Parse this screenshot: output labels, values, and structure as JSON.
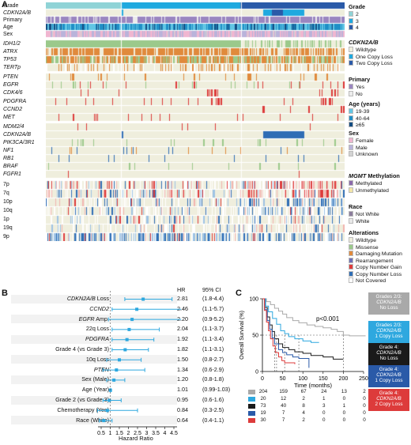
{
  "panels": {
    "a": "A",
    "b": "B",
    "c": "C"
  },
  "oncoprint": {
    "rows": [
      {
        "label": "Grade",
        "italic": false
      },
      {
        "label": "CDKN2A/B",
        "italic": true
      },
      {
        "label": "Primary",
        "italic": false
      },
      {
        "label": "Age",
        "italic": false
      },
      {
        "label": "Sex",
        "italic": false
      },
      {
        "label": "IDH1/2",
        "italic": true
      },
      {
        "label": "ATRX",
        "italic": true
      },
      {
        "label": "TP53",
        "italic": true
      },
      {
        "label": "TERTp",
        "italic": true
      },
      {
        "label": "PTEN",
        "italic": true
      },
      {
        "label": "EGFR",
        "italic": true
      },
      {
        "label": "CDK4/6",
        "italic": true
      },
      {
        "label": "PDGFRA",
        "italic": true
      },
      {
        "label": "CCND2",
        "italic": true
      },
      {
        "label": "MET",
        "italic": true
      },
      {
        "label": "MDM2/4",
        "italic": true
      },
      {
        "label": "CDKN2A/B",
        "italic": true
      },
      {
        "label": "PIK3CA/3R1",
        "italic": true
      },
      {
        "label": "NF1",
        "italic": true
      },
      {
        "label": "RB1",
        "italic": true
      },
      {
        "label": "BRAF",
        "italic": true
      },
      {
        "label": "FGFR1",
        "italic": true
      },
      {
        "label": "7p",
        "italic": false
      },
      {
        "label": "7q",
        "italic": false
      },
      {
        "label": "10p",
        "italic": false
      },
      {
        "label": "10q",
        "italic": false
      },
      {
        "label": "1p",
        "italic": false
      },
      {
        "label": "19q",
        "italic": false
      },
      {
        "label": "9p",
        "italic": false
      }
    ],
    "colors": {
      "grade2": "#8fd3d6",
      "grade3": "#1fa9df",
      "grade4": "#2a5aa8",
      "wildtype": "#efeedd",
      "missense": "#9bc98b",
      "damaging": "#e08a3c",
      "rearrangement": "#6c6fb8",
      "gain": "#dd3b3b",
      "loss": "#2f6db5",
      "not_covered": "#ffffff",
      "primary_yes": "#9a86c0",
      "primary_no": "#ececec",
      "age1": "#62c6e4",
      "age2": "#1f8fc6",
      "age3": "#134c82",
      "female": "#f0b6d0",
      "male": "#b9b3da",
      "unknown": "#d3d3d3",
      "methylated": "#8b6aab",
      "unmethylated": "#f3e6a8",
      "not_white": "#8c7e9c",
      "white": "#e8e8e8"
    }
  },
  "legend": {
    "grade": {
      "title": "Grade",
      "items": [
        "2",
        "3",
        "4"
      ]
    },
    "cdkn2ab": {
      "title": "CDKN2A/B",
      "items": [
        "Wildtype",
        "One Copy Loss",
        "Two Copy Loss"
      ]
    },
    "primary": {
      "title": "Primary",
      "items": [
        "Yes",
        "No"
      ]
    },
    "age": {
      "title": "Age (years)",
      "items": [
        "19-39",
        "40-64",
        "≥65"
      ]
    },
    "sex": {
      "title": "Sex",
      "items": [
        "Female",
        "Male",
        "Unknown"
      ]
    },
    "mgmt": {
      "title_it": "MGMT",
      "title_rest": " Methylation",
      "items": [
        "Methylated",
        "Unmethylated"
      ]
    },
    "race": {
      "title": "Race",
      "items": [
        "Not White",
        "White"
      ]
    },
    "alterations": {
      "title": "Alterations",
      "items": [
        "Wildtype",
        "Missense",
        "Damaging Mutation",
        "Rearrangement",
        "Copy Number Gain",
        "Copy Number Loss",
        "Not Covered"
      ]
    }
  },
  "forest": {
    "hr_header": "HR",
    "ci_header": "95% CI",
    "xlabel": "Hazard Ratio",
    "ticks": [
      "0.5",
      "1",
      "1.5",
      "2",
      "2.5",
      "3",
      "3.5",
      "4",
      "4.5"
    ],
    "rows": [
      {
        "label_it": "CDKN2A/B",
        "label_rest": " Loss",
        "hr": "2.81",
        "ci": "(1.8-4.4)",
        "hr_v": 2.81,
        "lo": 1.8,
        "hi": 4.4
      },
      {
        "label_it": "CCND2",
        "label_rest": "",
        "hr": "2.46",
        "ci": "(1.1-5.7)",
        "hr_v": 2.46,
        "lo": 1.1,
        "hi": 5.7
      },
      {
        "label_it": "EGFR",
        "label_rest": " Amp.",
        "hr": "2.20",
        "ci": "(0.9-5.2)",
        "hr_v": 2.2,
        "lo": 0.9,
        "hi": 5.2
      },
      {
        "label_it": "",
        "label_rest": "22q Loss",
        "hr": "2.04",
        "ci": "(1.1-3.7)",
        "hr_v": 2.04,
        "lo": 1.1,
        "hi": 3.7
      },
      {
        "label_it": "PDGFRA",
        "label_rest": "",
        "hr": "1.92",
        "ci": "(1.1-3.4)",
        "hr_v": 1.92,
        "lo": 1.1,
        "hi": 3.4
      },
      {
        "label_it": "",
        "label_rest": "Grade 4 (vs Grade 3)",
        "hr": "1.82",
        "ci": "(1.1-3.1)",
        "hr_v": 1.82,
        "lo": 1.1,
        "hi": 3.1
      },
      {
        "label_it": "",
        "label_rest": "10q Loss",
        "hr": "1.50",
        "ci": "(0.8-2.7)",
        "hr_v": 1.5,
        "lo": 0.8,
        "hi": 2.7
      },
      {
        "label_it": "PTEN",
        "label_rest": "",
        "hr": "1.34",
        "ci": "(0.6-2.9)",
        "hr_v": 1.34,
        "lo": 0.6,
        "hi": 2.9
      },
      {
        "label_it": "",
        "label_rest": "Sex (Male)",
        "hr": "1.20",
        "ci": "(0.8-1.8)",
        "hr_v": 1.2,
        "lo": 0.8,
        "hi": 1.8
      },
      {
        "label_it": "",
        "label_rest": "Age (Year)",
        "hr": "1.01",
        "ci": "(0.99-1.03)",
        "hr_v": 1.01,
        "lo": 0.99,
        "hi": 1.03
      },
      {
        "label_it": "",
        "label_rest": "Grade 2 (vs Grade 3)",
        "hr": "0.95",
        "ci": "(0.6-1.6)",
        "hr_v": 0.95,
        "lo": 0.6,
        "hi": 1.6
      },
      {
        "label_it": "",
        "label_rest": "Chemotherapy (Yes)",
        "hr": "0.84",
        "ci": "(0.3-2.5)",
        "hr_v": 0.84,
        "lo": 0.3,
        "hi": 2.5
      },
      {
        "label_it": "",
        "label_rest": "Race (White)",
        "hr": "0.64",
        "ci": "(0.4-1.1)",
        "hr_v": 0.64,
        "lo": 0.4,
        "hi": 1.1
      }
    ]
  },
  "chart_data": {
    "type": "line",
    "ylabel": "Overall Survival (%)",
    "xlabel": "Time (months)",
    "xlim": [
      0,
      250
    ],
    "ylim": [
      0,
      100
    ],
    "xticks": [
      "0",
      "50",
      "100",
      "150",
      "200",
      "250"
    ],
    "yticks": [
      "0",
      "50",
      "100"
    ],
    "annotation": "p<0.001",
    "series": [
      {
        "name": "Grades 2/3: CDKN2A/B No Loss",
        "color": "#a9a9a9",
        "points": [
          [
            0,
            100
          ],
          [
            10,
            96
          ],
          [
            20,
            92
          ],
          [
            30,
            87
          ],
          [
            40,
            83
          ],
          [
            50,
            79
          ],
          [
            60,
            74
          ],
          [
            75,
            70
          ],
          [
            90,
            67
          ],
          [
            110,
            64
          ],
          [
            130,
            62
          ],
          [
            150,
            60
          ],
          [
            170,
            58
          ],
          [
            185,
            55
          ],
          [
            200,
            50
          ],
          [
            215,
            49
          ],
          [
            255,
            49
          ]
        ]
      },
      {
        "name": "Grades 2/3: CDKN2A/B 1 Copy Loss",
        "color": "#2ea8df",
        "points": [
          [
            0,
            100
          ],
          [
            8,
            90
          ],
          [
            15,
            82
          ],
          [
            25,
            73
          ],
          [
            35,
            65
          ],
          [
            45,
            56
          ],
          [
            55,
            52
          ],
          [
            65,
            48
          ],
          [
            80,
            45
          ],
          [
            100,
            42
          ],
          [
            120,
            40
          ],
          [
            140,
            40
          ]
        ]
      },
      {
        "name": "Grade 4: CDKN2A/B No Loss",
        "color": "#1a1a1a",
        "points": [
          [
            0,
            100
          ],
          [
            6,
            88
          ],
          [
            12,
            75
          ],
          [
            18,
            64
          ],
          [
            24,
            55
          ],
          [
            30,
            45
          ],
          [
            40,
            38
          ],
          [
            50,
            33
          ],
          [
            65,
            30
          ],
          [
            80,
            27
          ],
          [
            100,
            25
          ],
          [
            120,
            22
          ],
          [
            150,
            20
          ],
          [
            175,
            17
          ],
          [
            200,
            17
          ]
        ]
      },
      {
        "name": "Grade 4: CDKN2A/B 1 Copy Loss",
        "color": "#2a5aa8",
        "points": [
          [
            0,
            100
          ],
          [
            6,
            85
          ],
          [
            12,
            70
          ],
          [
            18,
            58
          ],
          [
            24,
            46
          ],
          [
            30,
            38
          ],
          [
            40,
            30
          ],
          [
            50,
            26
          ],
          [
            60,
            23
          ],
          [
            75,
            20
          ],
          [
            90,
            18
          ],
          [
            115,
            5
          ]
        ]
      },
      {
        "name": "Grade 4: CDKN2A/B 2 Copy Loss",
        "color": "#dd3b3b",
        "points": [
          [
            0,
            100
          ],
          [
            5,
            84
          ],
          [
            10,
            68
          ],
          [
            15,
            56
          ],
          [
            20,
            45
          ],
          [
            26,
            35
          ],
          [
            32,
            26
          ],
          [
            40,
            20
          ],
          [
            48,
            15
          ],
          [
            55,
            12
          ],
          [
            80,
            10
          ]
        ]
      }
    ],
    "medians": [
      35,
      30,
      55,
      90,
      200
    ]
  },
  "km_legend": [
    {
      "l1": "Grades 2/3:",
      "l2": "CDKN2A/B",
      "l3": "No Loss",
      "color": "#a9a9a9"
    },
    {
      "l1": "Grades 2/3:",
      "l2": "CDKN2A/B",
      "l3": "1 Copy Loss",
      "color": "#2ea8df"
    },
    {
      "l1": "Grade 4:",
      "l2": "CDKN2A/B",
      "l3": "No Loss",
      "color": "#1a1a1a"
    },
    {
      "l1": "Grade 4:",
      "l2": "CDKN2A/B",
      "l3": "1 Copy Loss",
      "color": "#2a5aa8"
    },
    {
      "l1": "Grade 4:",
      "l2": "CDKN2A/B",
      "l3": "2 Copy Loss",
      "color": "#dd3b3b"
    }
  ],
  "risk_table": [
    {
      "color": "#a9a9a9",
      "values": [
        "204",
        "159",
        "67",
        "24",
        "13",
        "2"
      ]
    },
    {
      "color": "#2ea8df",
      "values": [
        "20",
        "12",
        "2",
        "1",
        "0",
        "0"
      ]
    },
    {
      "color": "#1a1a1a",
      "values": [
        "73",
        "40",
        "8",
        "3",
        "1",
        "0"
      ]
    },
    {
      "color": "#2a5aa8",
      "values": [
        "19",
        "7",
        "4",
        "0",
        "0",
        "0"
      ]
    },
    {
      "color": "#dd3b3b",
      "values": [
        "30",
        "7",
        "2",
        "0",
        "0",
        "0"
      ]
    }
  ]
}
